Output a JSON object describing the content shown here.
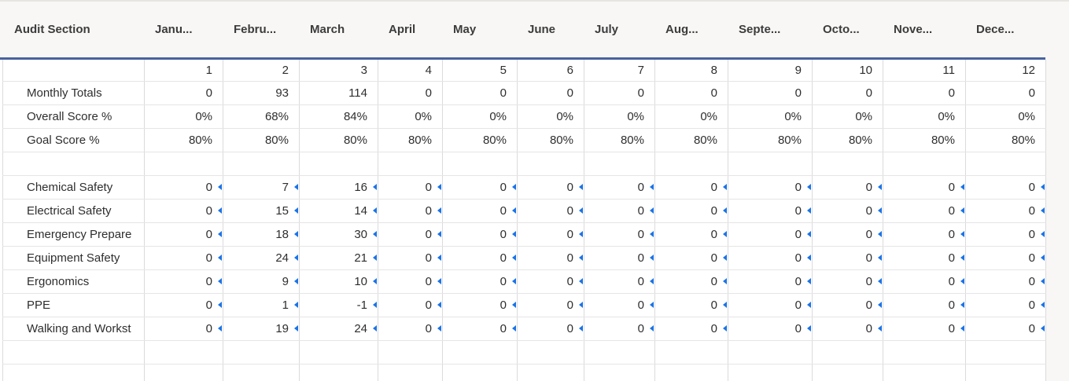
{
  "table": {
    "header": {
      "section_label": "Audit Section",
      "months": [
        "Janu...",
        "Febru...",
        "March",
        "April",
        "May",
        "June",
        "July",
        "Aug...",
        "Septe...",
        "Octo...",
        "Nove...",
        "Dece..."
      ]
    },
    "month_numbers": [
      "1",
      "2",
      "3",
      "4",
      "5",
      "6",
      "7",
      "8",
      "9",
      "10",
      "11",
      "12"
    ],
    "summary_rows": [
      {
        "label": "Monthly Totals",
        "values": [
          "0",
          "93",
          "114",
          "0",
          "0",
          "0",
          "0",
          "0",
          "0",
          "0",
          "0",
          "0"
        ]
      },
      {
        "label": "Overall Score %",
        "values": [
          "0%",
          "68%",
          "84%",
          "0%",
          "0%",
          "0%",
          "0%",
          "0%",
          "0%",
          "0%",
          "0%",
          "0%"
        ]
      },
      {
        "label": "Goal Score %",
        "values": [
          "80%",
          "80%",
          "80%",
          "80%",
          "80%",
          "80%",
          "80%",
          "80%",
          "80%",
          "80%",
          "80%",
          "80%"
        ]
      }
    ],
    "section_rows": [
      {
        "label": "Chemical Safety",
        "values": [
          "0",
          "7",
          "16",
          "0",
          "0",
          "0",
          "0",
          "0",
          "0",
          "0",
          "0",
          "0"
        ]
      },
      {
        "label": "Electrical Safety",
        "values": [
          "0",
          "15",
          "14",
          "0",
          "0",
          "0",
          "0",
          "0",
          "0",
          "0",
          "0",
          "0"
        ]
      },
      {
        "label": "Emergency Prepare",
        "values": [
          "0",
          "18",
          "30",
          "0",
          "0",
          "0",
          "0",
          "0",
          "0",
          "0",
          "0",
          "0"
        ]
      },
      {
        "label": "Equipment Safety",
        "values": [
          "0",
          "24",
          "21",
          "0",
          "0",
          "0",
          "0",
          "0",
          "0",
          "0",
          "0",
          "0"
        ]
      },
      {
        "label": "Ergonomics",
        "values": [
          "0",
          "9",
          "10",
          "0",
          "0",
          "0",
          "0",
          "0",
          "0",
          "0",
          "0",
          "0"
        ]
      },
      {
        "label": "PPE",
        "values": [
          "0",
          "1",
          "-1",
          "0",
          "0",
          "0",
          "0",
          "0",
          "0",
          "0",
          "0",
          "0"
        ]
      },
      {
        "label": "Walking and Workst",
        "values": [
          "0",
          "19",
          "24",
          "0",
          "0",
          "0",
          "0",
          "0",
          "0",
          "0",
          "0",
          "0"
        ]
      }
    ]
  },
  "colors": {
    "accent_line": "#4a62a0",
    "indicator_blue": "#1a73e8",
    "header_bg": "#f8f7f5",
    "grid_vertical": "#dbdbdb",
    "grid_horizontal": "#e5e5e5"
  }
}
